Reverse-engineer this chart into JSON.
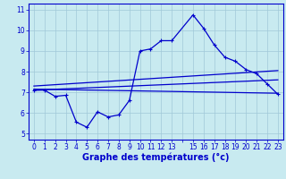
{
  "xlabel": "Graphe des températures (°c)",
  "background_color": "#c8eaf0",
  "grid_color": "#a0c8d8",
  "line_color": "#0000cc",
  "xlim": [
    -0.5,
    23.5
  ],
  "ylim": [
    4.7,
    11.3
  ],
  "x_ticks": [
    0,
    1,
    2,
    3,
    4,
    5,
    6,
    7,
    8,
    9,
    10,
    11,
    12,
    13,
    14,
    15,
    16,
    17,
    18,
    19,
    20,
    21,
    22,
    23
  ],
  "x_tick_labels": [
    "0",
    "1",
    "2",
    "3",
    "4",
    "5",
    "6",
    "7",
    "8",
    "9",
    "10",
    "11",
    "12",
    "13",
    "",
    "15",
    "16",
    "17",
    "18",
    "19",
    "20",
    "21",
    "22",
    "23"
  ],
  "y_ticks": [
    5,
    6,
    7,
    8,
    9,
    10,
    11
  ],
  "y_tick_labels": [
    "5",
    "6",
    "7",
    "8",
    "9",
    "10",
    "11"
  ],
  "main_curve_x": [
    0,
    1,
    2,
    3,
    4,
    5,
    6,
    7,
    8,
    9,
    10,
    11,
    12,
    13,
    15,
    16,
    17,
    18,
    19,
    20,
    21,
    22,
    23
  ],
  "main_curve_y": [
    7.1,
    7.1,
    6.8,
    6.85,
    5.55,
    5.3,
    6.05,
    5.8,
    5.9,
    6.6,
    9.0,
    9.1,
    9.5,
    9.5,
    10.75,
    10.1,
    9.3,
    8.7,
    8.5,
    8.1,
    7.9,
    7.4,
    6.9
  ],
  "line1_x": [
    0,
    23
  ],
  "line1_y": [
    7.15,
    6.95
  ],
  "line2_x": [
    0,
    23
  ],
  "line2_y": [
    7.3,
    8.05
  ],
  "line3_x": [
    0,
    23
  ],
  "line3_y": [
    7.1,
    7.6
  ],
  "tick_fontsize": 5.5,
  "label_fontsize": 7
}
